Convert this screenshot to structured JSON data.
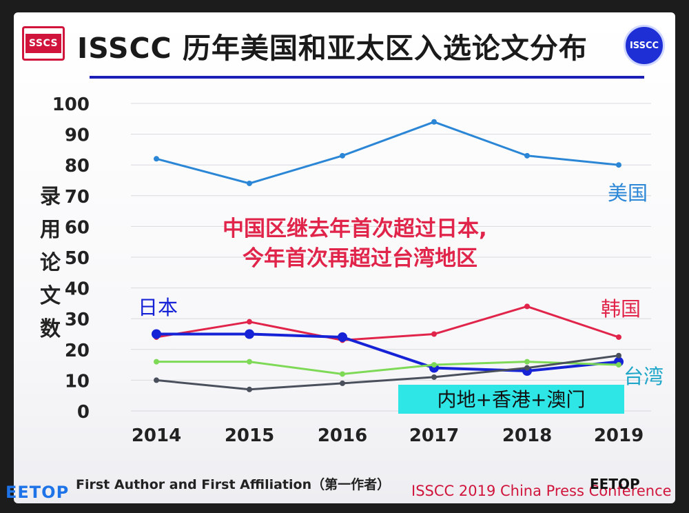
{
  "header": {
    "title": "ISSCC 历年美国和亚太区入选论文分布",
    "logo_left_text": "SSCS",
    "logo_right_text": "ISSCC"
  },
  "footer": {
    "left": "First Author and First Affiliation（第一作者）",
    "right": "ISSCC 2019 China Press Conference"
  },
  "watermarks": {
    "left": "EETOP",
    "right": "EETOP"
  },
  "colors": {
    "title_rule": "#1c1fb5",
    "usa": "#2b86d6",
    "japan": "#1522d6",
    "korea": "#e0244a",
    "taiwan": "#7ed957",
    "mainland": "#4a4f5c",
    "annotation": "#e0244a",
    "mainland_box": "#2ee6e6"
  },
  "chart_data": {
    "type": "line",
    "categories": [
      "2014",
      "2015",
      "2016",
      "2017",
      "2018",
      "2019"
    ],
    "ylabel": "录用论文数",
    "ylim": [
      0,
      100
    ],
    "yticks": [
      "0",
      "10",
      "20",
      "30",
      "40",
      "50",
      "60",
      "70",
      "80",
      "90",
      "100"
    ],
    "grid": true,
    "series": [
      {
        "name": "美国",
        "key": "usa",
        "values": [
          82,
          74,
          83,
          94,
          83,
          80
        ]
      },
      {
        "name": "韩国",
        "key": "korea",
        "values": [
          24,
          29,
          23,
          25,
          34,
          24
        ]
      },
      {
        "name": "日本",
        "key": "japan",
        "values": [
          25,
          25,
          24,
          14,
          13,
          16
        ]
      },
      {
        "name": "台湾",
        "key": "taiwan",
        "values": [
          16,
          16,
          12,
          15,
          16,
          15
        ]
      },
      {
        "name": "内地+香港+澳门",
        "key": "mainland",
        "values": [
          10,
          7,
          9,
          11,
          14,
          18
        ]
      }
    ],
    "annotation": {
      "line1": "中国区继去年首次超过日本,",
      "line2": "今年首次再超过台湾地区"
    }
  }
}
